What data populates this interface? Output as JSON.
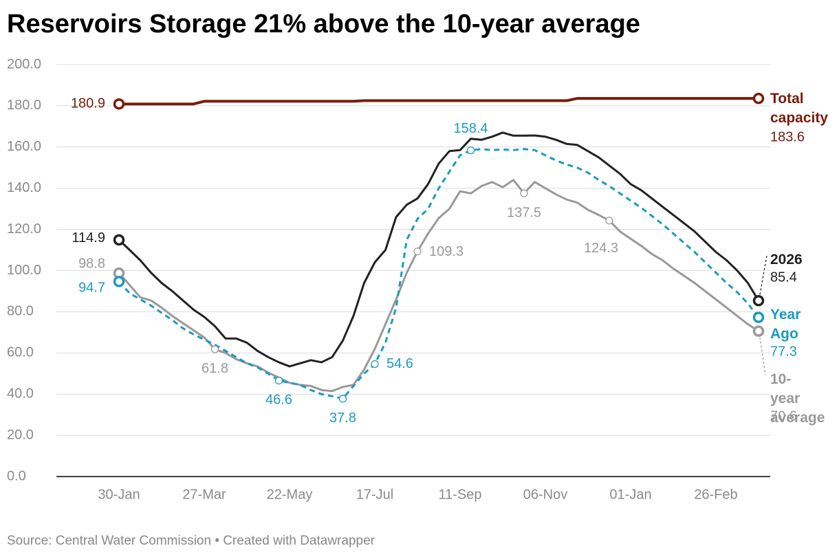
{
  "chart_data": {
    "type": "line",
    "title": "Reservoirs Storage 21% above the 10-year average",
    "source": "Source: Central Water Commission • Created with Datawrapper",
    "categories": [
      "30-Jan",
      null,
      null,
      null,
      null,
      null,
      null,
      null,
      "27-Mar",
      null,
      null,
      null,
      null,
      null,
      null,
      null,
      "22-May",
      null,
      null,
      null,
      null,
      null,
      null,
      null,
      "17-Jul",
      null,
      null,
      null,
      null,
      null,
      null,
      null,
      "11-Sep",
      null,
      null,
      null,
      null,
      null,
      null,
      null,
      "06-Nov",
      null,
      null,
      null,
      null,
      null,
      null,
      null,
      "01-Jan",
      null,
      null,
      null,
      null,
      null,
      null,
      null,
      "26-Feb",
      null,
      null,
      null,
      null
    ],
    "ylim": [
      0,
      200
    ],
    "yticks": [
      {
        "value": 0,
        "label": "0.0"
      },
      {
        "value": 20,
        "label": "20.0"
      },
      {
        "value": 40,
        "label": "40.0"
      },
      {
        "value": 60,
        "label": "60.0"
      },
      {
        "value": 80,
        "label": "80.0"
      },
      {
        "value": 100,
        "label": "100.0"
      },
      {
        "value": 120,
        "label": "120.0"
      },
      {
        "value": 140,
        "label": "140.0"
      },
      {
        "value": 160,
        "label": "160.0"
      },
      {
        "value": 180,
        "label": "180.0"
      },
      {
        "value": 200,
        "label": "200.0"
      }
    ],
    "grid": true,
    "series": [
      {
        "name": "Total capacity",
        "color": "#7a1b0b",
        "style": "solid",
        "values": [
          180.9,
          180.9,
          180.9,
          180.9,
          180.9,
          180.9,
          180.9,
          180.9,
          182.2,
          182.2,
          182.2,
          182.2,
          182.2,
          182.2,
          182.2,
          182.2,
          182.2,
          182.2,
          182.2,
          182.2,
          182.2,
          182.2,
          182.2,
          182.5,
          182.5,
          182.5,
          182.5,
          182.5,
          182.5,
          182.5,
          182.5,
          182.5,
          182.5,
          182.5,
          182.5,
          182.5,
          182.5,
          182.5,
          182.5,
          182.5,
          182.5,
          182.5,
          182.5,
          183.6,
          183.6,
          183.6,
          183.6,
          183.6,
          183.6,
          183.6,
          183.6,
          183.6,
          183.6,
          183.6,
          183.6,
          183.6,
          183.6,
          183.6,
          183.6,
          183.6,
          183.6
        ],
        "value_labels": [
          "180.9",
          null,
          null,
          null,
          null,
          null,
          null,
          null,
          null,
          null,
          null,
          null,
          null,
          null,
          null,
          null,
          null,
          null,
          null,
          null,
          null,
          null,
          null,
          null,
          null,
          null,
          null,
          null,
          null,
          null,
          null,
          null,
          null,
          null,
          null,
          null,
          null,
          null,
          null,
          null,
          null,
          null,
          null,
          null,
          null,
          null,
          null,
          null,
          null,
          null,
          null,
          null,
          null,
          null,
          null,
          null,
          null,
          null,
          null,
          null,
          "183.6"
        ]
      },
      {
        "name": "10-year average",
        "color": "#999999",
        "style": "solid",
        "values": [
          98.8,
          93,
          87,
          85.5,
          82,
          78,
          74.5,
          71,
          67.5,
          61.8,
          60,
          57,
          55,
          53.5,
          50.5,
          48,
          45.5,
          44.5,
          44,
          42,
          41.5,
          43.5,
          44.5,
          52,
          62,
          74,
          86,
          99,
          109.3,
          118,
          125.5,
          130,
          138.5,
          137.5,
          141,
          143,
          140.5,
          144,
          137.5,
          143,
          140,
          137,
          134.5,
          133,
          129.5,
          127,
          124.3,
          119,
          115.5,
          112,
          108,
          105,
          101,
          97.5,
          94,
          90,
          86,
          82,
          78,
          74,
          70.6
        ],
        "value_labels": [
          "98.8",
          null,
          null,
          null,
          null,
          null,
          null,
          null,
          null,
          "61.8",
          null,
          null,
          null,
          null,
          null,
          null,
          null,
          null,
          null,
          null,
          null,
          null,
          null,
          null,
          null,
          null,
          null,
          null,
          "109.3",
          null,
          null,
          null,
          null,
          null,
          null,
          null,
          null,
          null,
          "137.5",
          null,
          null,
          null,
          null,
          null,
          null,
          null,
          "124.3",
          null,
          null,
          null,
          null,
          null,
          null,
          null,
          null,
          null,
          null,
          null,
          null,
          null,
          "70.6"
        ]
      },
      {
        "name": "Year Ago",
        "color": "#1a9bc0",
        "style": "dashed",
        "values": [
          94.7,
          89,
          86,
          83,
          79.5,
          76,
          72,
          69,
          66.5,
          64,
          61,
          58,
          55,
          53,
          50,
          46.6,
          45.5,
          44.5,
          42,
          40,
          39,
          37.8,
          44,
          50,
          54.6,
          65,
          82,
          115,
          125,
          130,
          140,
          148,
          156,
          158.4,
          159,
          158.5,
          158.8,
          158.5,
          159,
          158.5,
          156,
          153.5,
          151.5,
          150,
          147.5,
          144,
          141,
          137.5,
          134,
          130.5,
          126.5,
          122.5,
          118,
          113.5,
          109,
          104,
          99,
          94,
          89.5,
          84,
          77.3
        ],
        "value_labels": [
          "94.7",
          null,
          null,
          null,
          null,
          null,
          null,
          null,
          null,
          null,
          null,
          null,
          null,
          null,
          null,
          "46.6",
          null,
          null,
          null,
          null,
          null,
          "37.8",
          null,
          null,
          "54.6",
          null,
          null,
          null,
          null,
          null,
          null,
          null,
          null,
          "158.4",
          null,
          null,
          null,
          null,
          null,
          null,
          null,
          null,
          null,
          null,
          null,
          null,
          null,
          null,
          null,
          null,
          null,
          null,
          null,
          null,
          null,
          null,
          null,
          null,
          null,
          null,
          "77.3"
        ]
      },
      {
        "name": "2026",
        "color": "#222222",
        "style": "solid",
        "values": [
          114.9,
          110,
          105,
          99,
          94,
          90,
          85.5,
          81,
          77.5,
          73,
          67,
          67,
          65,
          61,
          58,
          55.5,
          53.5,
          55,
          56.5,
          55.5,
          58,
          66,
          78,
          94,
          104,
          110,
          126,
          132,
          135,
          142,
          152,
          158,
          158.5,
          164,
          163.5,
          165,
          167,
          165.5,
          165.5,
          165.6,
          165,
          163.5,
          161.5,
          161,
          158,
          155,
          151,
          147,
          142,
          139,
          135,
          131,
          127,
          123,
          119,
          114,
          109,
          105,
          100,
          94,
          85.4
        ],
        "value_labels": [
          "114.9",
          null,
          null,
          null,
          null,
          null,
          null,
          null,
          null,
          null,
          null,
          null,
          null,
          null,
          null,
          null,
          null,
          null,
          null,
          null,
          null,
          null,
          null,
          null,
          null,
          null,
          null,
          null,
          null,
          null,
          null,
          null,
          null,
          null,
          null,
          null,
          null,
          null,
          null,
          null,
          null,
          null,
          null,
          null,
          null,
          null,
          null,
          null,
          null,
          null,
          null,
          null,
          null,
          null,
          null,
          null,
          null,
          null,
          null,
          null,
          "85.4"
        ]
      }
    ]
  }
}
